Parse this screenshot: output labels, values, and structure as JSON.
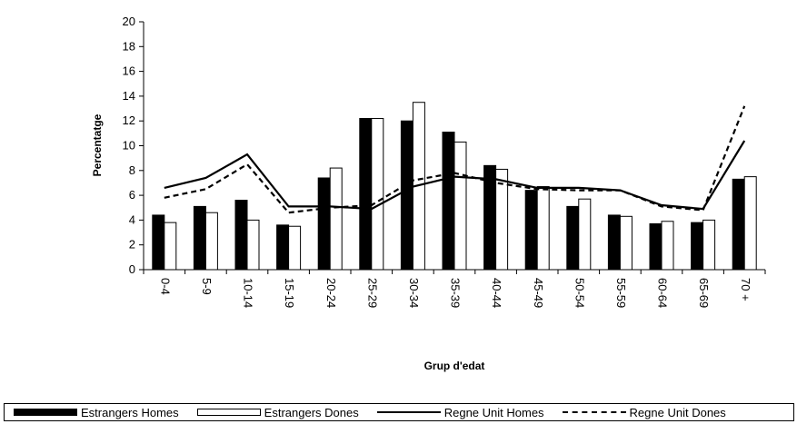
{
  "chart_data": {
    "type": "bar",
    "title": "",
    "xlabel": "Grup d'edat",
    "ylabel": "Percentatge",
    "ylim": [
      0,
      20
    ],
    "yticks": [
      0,
      2,
      4,
      6,
      8,
      10,
      12,
      14,
      16,
      18,
      20
    ],
    "grid": false,
    "legend_position": "bottom",
    "categories": [
      "0-4",
      "5-9",
      "10-14",
      "15-19",
      "20-24",
      "25-29",
      "30-34",
      "35-39",
      "40-44",
      "45-49",
      "50-54",
      "55-59",
      "60-64",
      "65-69",
      "70 +"
    ],
    "series": [
      {
        "name": "Estrangers Homes",
        "type": "bar",
        "color": "#000000",
        "values": [
          4.4,
          5.1,
          5.6,
          3.6,
          7.4,
          12.2,
          12.0,
          11.1,
          8.4,
          6.4,
          5.1,
          4.4,
          3.7,
          3.8,
          7.3
        ]
      },
      {
        "name": "Estrangers Dones",
        "type": "bar",
        "color": "#ffffff",
        "values": [
          3.8,
          4.6,
          4.0,
          3.5,
          8.2,
          12.2,
          13.5,
          10.3,
          8.1,
          6.7,
          5.7,
          4.3,
          3.9,
          4.0,
          7.5
        ]
      },
      {
        "name": "Regne Unit Homes",
        "type": "line",
        "color": "#000000",
        "dash": "solid",
        "values": [
          6.6,
          7.4,
          9.3,
          5.1,
          5.1,
          4.9,
          6.7,
          7.5,
          7.3,
          6.6,
          6.6,
          6.4,
          5.2,
          4.9,
          10.4
        ]
      },
      {
        "name": "Regne Unit Dones",
        "type": "line",
        "color": "#000000",
        "dash": "dashed",
        "values": [
          5.8,
          6.5,
          8.5,
          4.6,
          5.0,
          5.2,
          7.2,
          7.8,
          7.0,
          6.5,
          6.4,
          6.4,
          5.1,
          4.8,
          13.2
        ]
      }
    ]
  }
}
